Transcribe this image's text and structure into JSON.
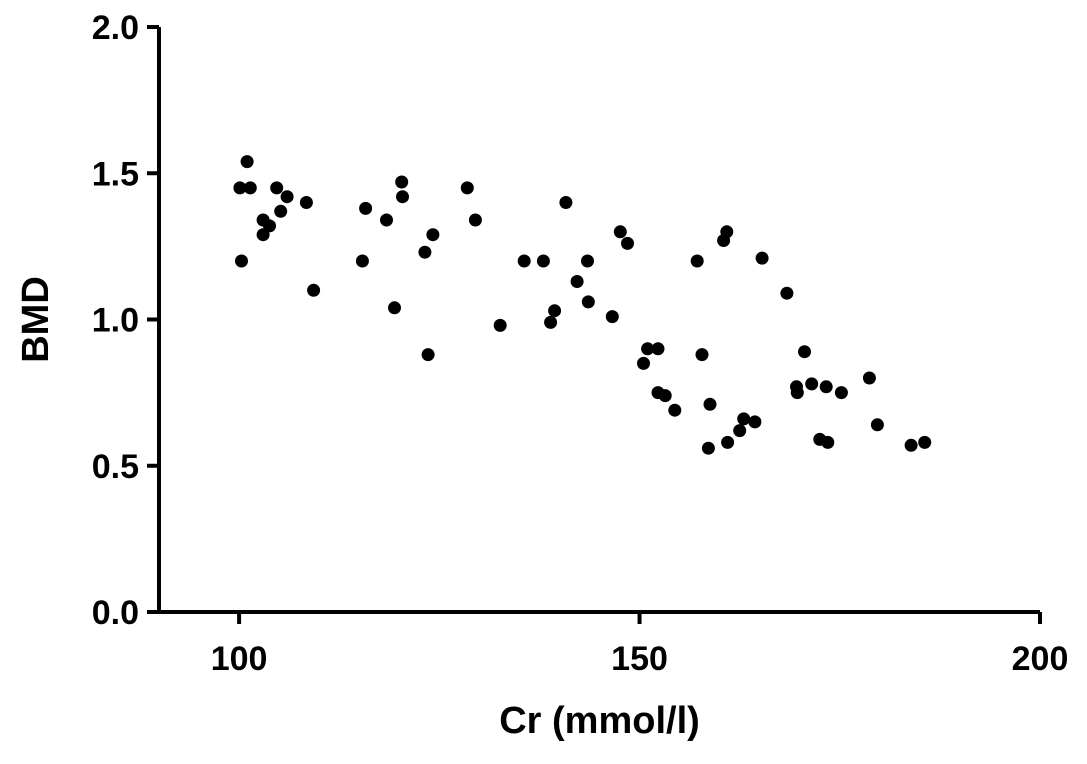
{
  "chart_data": {
    "type": "scatter",
    "title": "",
    "xlabel": "Cr (mmol/l)",
    "ylabel": "BMD",
    "xlim": [
      90,
      200
    ],
    "ylim": [
      0.0,
      2.0
    ],
    "xticks": [
      100,
      150,
      200
    ],
    "xtick_labels": [
      "100",
      "150",
      "200"
    ],
    "yticks": [
      0.0,
      0.5,
      1.0,
      1.5,
      2.0
    ],
    "ytick_labels": [
      "0.0",
      "0.5",
      "1.0",
      "1.5",
      "2.0"
    ],
    "grid": false,
    "legend": "none",
    "marker_color": "#000000",
    "series": [
      {
        "points": [
          [
            100.1,
            1.45
          ],
          [
            101.4,
            1.45
          ],
          [
            101.0,
            1.54
          ],
          [
            100.3,
            1.2
          ],
          [
            103.0,
            1.34
          ],
          [
            103.0,
            1.29
          ],
          [
            103.8,
            1.32
          ],
          [
            104.7,
            1.45
          ],
          [
            105.2,
            1.37
          ],
          [
            106.0,
            1.42
          ],
          [
            108.4,
            1.4
          ],
          [
            109.3,
            1.1
          ],
          [
            115.4,
            1.2
          ],
          [
            115.8,
            1.38
          ],
          [
            118.4,
            1.34
          ],
          [
            119.4,
            1.04
          ],
          [
            120.3,
            1.47
          ],
          [
            120.4,
            1.42
          ],
          [
            123.2,
            1.23
          ],
          [
            123.6,
            0.88
          ],
          [
            124.2,
            1.29
          ],
          [
            128.5,
            1.45
          ],
          [
            129.5,
            1.34
          ],
          [
            132.6,
            0.98
          ],
          [
            135.6,
            1.2
          ],
          [
            138.0,
            1.2
          ],
          [
            138.9,
            0.99
          ],
          [
            139.4,
            1.03
          ],
          [
            140.8,
            1.4
          ],
          [
            142.2,
            1.13
          ],
          [
            143.5,
            1.2
          ],
          [
            143.6,
            1.06
          ],
          [
            146.6,
            1.01
          ],
          [
            147.6,
            1.3
          ],
          [
            148.5,
            1.26
          ],
          [
            150.5,
            0.85
          ],
          [
            151.0,
            0.9
          ],
          [
            152.3,
            0.9
          ],
          [
            152.3,
            0.75
          ],
          [
            153.2,
            0.74
          ],
          [
            154.4,
            0.69
          ],
          [
            157.2,
            1.2
          ],
          [
            157.8,
            0.88
          ],
          [
            158.6,
            0.56
          ],
          [
            158.8,
            0.71
          ],
          [
            160.5,
            1.27
          ],
          [
            160.9,
            1.3
          ],
          [
            161.0,
            0.58
          ],
          [
            162.5,
            0.62
          ],
          [
            163.0,
            0.66
          ],
          [
            164.4,
            0.65
          ],
          [
            165.3,
            1.21
          ],
          [
            168.4,
            1.09
          ],
          [
            169.6,
            0.77
          ],
          [
            169.7,
            0.75
          ],
          [
            170.6,
            0.89
          ],
          [
            171.5,
            0.78
          ],
          [
            172.5,
            0.59
          ],
          [
            173.5,
            0.58
          ],
          [
            173.3,
            0.77
          ],
          [
            175.2,
            0.75
          ],
          [
            178.7,
            0.8
          ],
          [
            179.7,
            0.64
          ],
          [
            183.9,
            0.57
          ],
          [
            185.6,
            0.58
          ]
        ]
      }
    ]
  }
}
